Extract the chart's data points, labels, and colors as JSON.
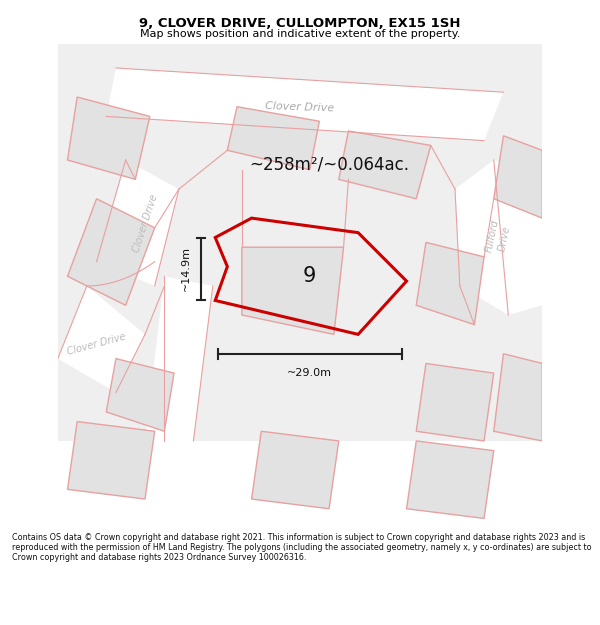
{
  "title": "9, CLOVER DRIVE, CULLOMPTON, EX15 1SH",
  "subtitle": "Map shows position and indicative extent of the property.",
  "copyright": "Contains OS data © Crown copyright and database right 2021. This information is subject to Crown copyright and database rights 2023 and is reproduced with the permission of HM Land Registry. The polygons (including the associated geometry, namely x, y co-ordinates) are subject to Crown copyright and database rights 2023 Ordnance Survey 100026316.",
  "area_label": "~258m²/~0.064ac.",
  "width_label": "~29.0m",
  "height_label": "~14.9m",
  "plot_number": "9",
  "bg_color": "#ffffff",
  "map_bg": "#efefef",
  "road_color": "#ffffff",
  "building_fill": "#e2e2e2",
  "building_edge": "#e8a0a0",
  "highlight_edge": "#cc0000",
  "title_color": "#000000"
}
